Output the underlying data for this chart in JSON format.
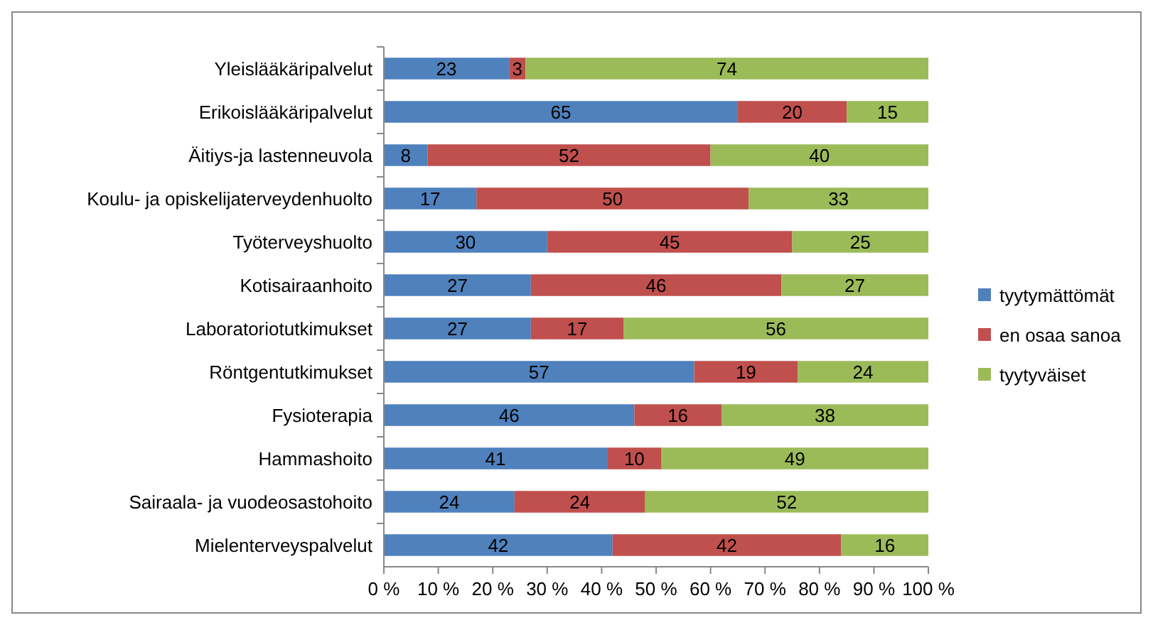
{
  "chart_data": {
    "type": "bar",
    "orientation": "horizontal",
    "stacked": true,
    "data_labels": true,
    "grid": false,
    "legend": "right",
    "categories": [
      "Yleislääkäripalvelut",
      "Erikoislääkäripalvelut",
      "Äitiys-ja lastenneuvola",
      "Koulu- ja opiskelijaterveydenhuolto",
      "Työterveyshuolto",
      "Kotisairaanhoito",
      "Laboratoriotutkimukset",
      "Röntgentutkimukset",
      "Fysioterapia",
      "Hammashoito",
      "Sairaala- ja vuodeosastohoito",
      "Mielenterveyspalvelut"
    ],
    "series": [
      {
        "name": "tyytymättömät",
        "color": "#4f81bd",
        "values": [
          23,
          65,
          8,
          17,
          30,
          27,
          27,
          57,
          46,
          41,
          24,
          42
        ]
      },
      {
        "name": "en osaa sanoa",
        "color": "#c0504d",
        "values": [
          3,
          20,
          52,
          50,
          45,
          46,
          17,
          19,
          16,
          10,
          24,
          42
        ]
      },
      {
        "name": "tyytyväiset",
        "color": "#9bbb59",
        "values": [
          74,
          15,
          40,
          33,
          25,
          27,
          56,
          24,
          38,
          49,
          52,
          16
        ]
      }
    ],
    "xlim": [
      0,
      100
    ],
    "xticks": [
      {
        "value": 0,
        "label": "0 %"
      },
      {
        "value": 10,
        "label": "10 %"
      },
      {
        "value": 20,
        "label": "20 %"
      },
      {
        "value": 30,
        "label": "30 %"
      },
      {
        "value": 40,
        "label": "40 %"
      },
      {
        "value": 50,
        "label": "50 %"
      },
      {
        "value": 60,
        "label": "60 %"
      },
      {
        "value": 70,
        "label": "70 %"
      },
      {
        "value": 80,
        "label": "80 %"
      },
      {
        "value": 90,
        "label": "90 %"
      },
      {
        "value": 100,
        "label": "100 %"
      }
    ]
  }
}
